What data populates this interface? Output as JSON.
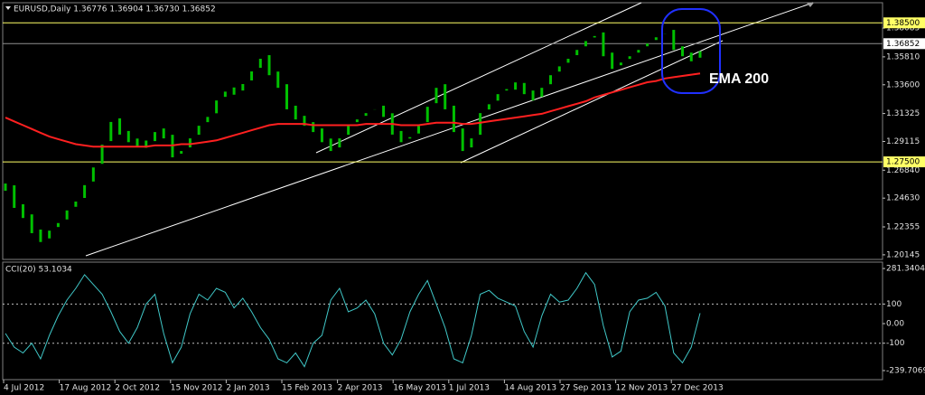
{
  "chart_data": [
    {
      "type": "bar",
      "title": "EURUSD,Daily  1.36776 1.36904 1.36730 1.36852",
      "annotation": "EMA 200",
      "ylim": [
        1.1978,
        1.3902
      ],
      "yticks": [
        1.20145,
        1.22355,
        {
          "value": 1.2463,
          "label": "1.24630"
        },
        {
          "value": 1.2684,
          "label": "1.26840"
        },
        1.29115,
        1.31325,
        {
          "value": 1.336,
          "label": "1.33600"
        },
        {
          "value": 1.3581,
          "label": "1.35810"
        },
        1.38085
      ],
      "levels": [
        {
          "value": 1.385,
          "label": "1.38500"
        },
        {
          "value": 1.275,
          "label": "1.27500"
        }
      ],
      "level_color": "#ffff66",
      "last_price": 1.36852,
      "series": [
        {
          "type": "bar",
          "color": "#00c000",
          "values": [
            1.255,
            1.24,
            1.232,
            1.22,
            1.213,
            1.222,
            1.228,
            1.238,
            1.245,
            1.258,
            1.272,
            1.29,
            1.308,
            1.298,
            1.292,
            1.288,
            1.29,
            1.3,
            1.295,
            1.28,
            1.285,
            1.295,
            1.305,
            1.312,
            1.325,
            1.332,
            1.33,
            1.338,
            1.348,
            1.358,
            1.345,
            1.335,
            1.318,
            1.31,
            1.305,
            1.3,
            1.292,
            1.285,
            1.295,
            1.305,
            1.31,
            1.315,
            1.318,
            1.312,
            1.298,
            1.292,
            1.296,
            1.305,
            1.32,
            1.335,
            1.318,
            1.3,
            1.285,
            1.295,
            1.315,
            1.322,
            1.33,
            1.334,
            1.336,
            1.33,
            1.325,
            1.335,
            1.345,
            1.352,
            1.358,
            1.365,
            1.372,
            1.376,
            1.36,
            1.35,
            1.355,
            1.36,
            1.365,
            1.37,
            1.375,
            1.378,
            1.365,
            1.36,
            1.356,
            1.364
          ]
        },
        {
          "type": "line",
          "name": "EMA 200",
          "color": "#ff2020",
          "values": [
            1.31,
            1.307,
            1.304,
            1.301,
            1.298,
            1.295,
            1.293,
            1.291,
            1.289,
            1.288,
            1.287,
            1.287,
            1.287,
            1.287,
            1.287,
            1.287,
            1.287,
            1.288,
            1.288,
            1.288,
            1.289,
            1.289,
            1.29,
            1.291,
            1.292,
            1.294,
            1.296,
            1.298,
            1.3,
            1.302,
            1.304,
            1.305,
            1.305,
            1.305,
            1.305,
            1.304,
            1.304,
            1.304,
            1.304,
            1.304,
            1.304,
            1.305,
            1.305,
            1.305,
            1.305,
            1.304,
            1.304,
            1.304,
            1.305,
            1.306,
            1.306,
            1.306,
            1.305,
            1.305,
            1.306,
            1.307,
            1.308,
            1.309,
            1.31,
            1.311,
            1.312,
            1.313,
            1.315,
            1.317,
            1.319,
            1.321,
            1.323,
            1.326,
            1.328,
            1.33,
            1.332,
            1.334,
            1.336,
            1.338,
            1.339,
            1.341,
            1.342,
            1.343,
            1.344,
            1.345
          ]
        }
      ]
    },
    {
      "type": "line",
      "title": "CCI(20) 53.1034",
      "ylim": [
        -286,
        314
      ],
      "yticks": [
        281.3404,
        100,
        {
          "value": 0,
          "label": "0.00"
        },
        -100,
        -239.7069
      ],
      "levels": [
        100,
        -100
      ],
      "xlabels": [
        "4 Jul 2012",
        "17 Aug 2012",
        "2 Oct 2012",
        "15 Nov 2012",
        "2 Jan 2013",
        "15 Feb 2013",
        "2 Apr 2013",
        "16 May 2013",
        "1 Jul 2013",
        "14 Aug 2013",
        "27 Sep 2013",
        "12 Nov 2013",
        "27 Dec 2013"
      ],
      "series": [
        {
          "type": "line",
          "color": "#40c8c8",
          "values": [
            -50,
            -120,
            -150,
            -100,
            -180,
            -60,
            40,
            120,
            180,
            250,
            200,
            150,
            60,
            -40,
            -100,
            -20,
            100,
            150,
            -50,
            -200,
            -120,
            50,
            150,
            120,
            180,
            160,
            80,
            130,
            60,
            -20,
            -80,
            -180,
            -200,
            -150,
            -220,
            -100,
            -60,
            120,
            180,
            60,
            80,
            120,
            50,
            -100,
            -160,
            -80,
            60,
            150,
            220,
            100,
            -20,
            -180,
            -200,
            -60,
            150,
            170,
            130,
            110,
            90,
            -40,
            -120,
            40,
            150,
            110,
            120,
            180,
            260,
            200,
            -10,
            -170,
            -140,
            60,
            120,
            130,
            160,
            90,
            -150,
            -200,
            -120,
            53.1034
          ]
        }
      ]
    }
  ]
}
